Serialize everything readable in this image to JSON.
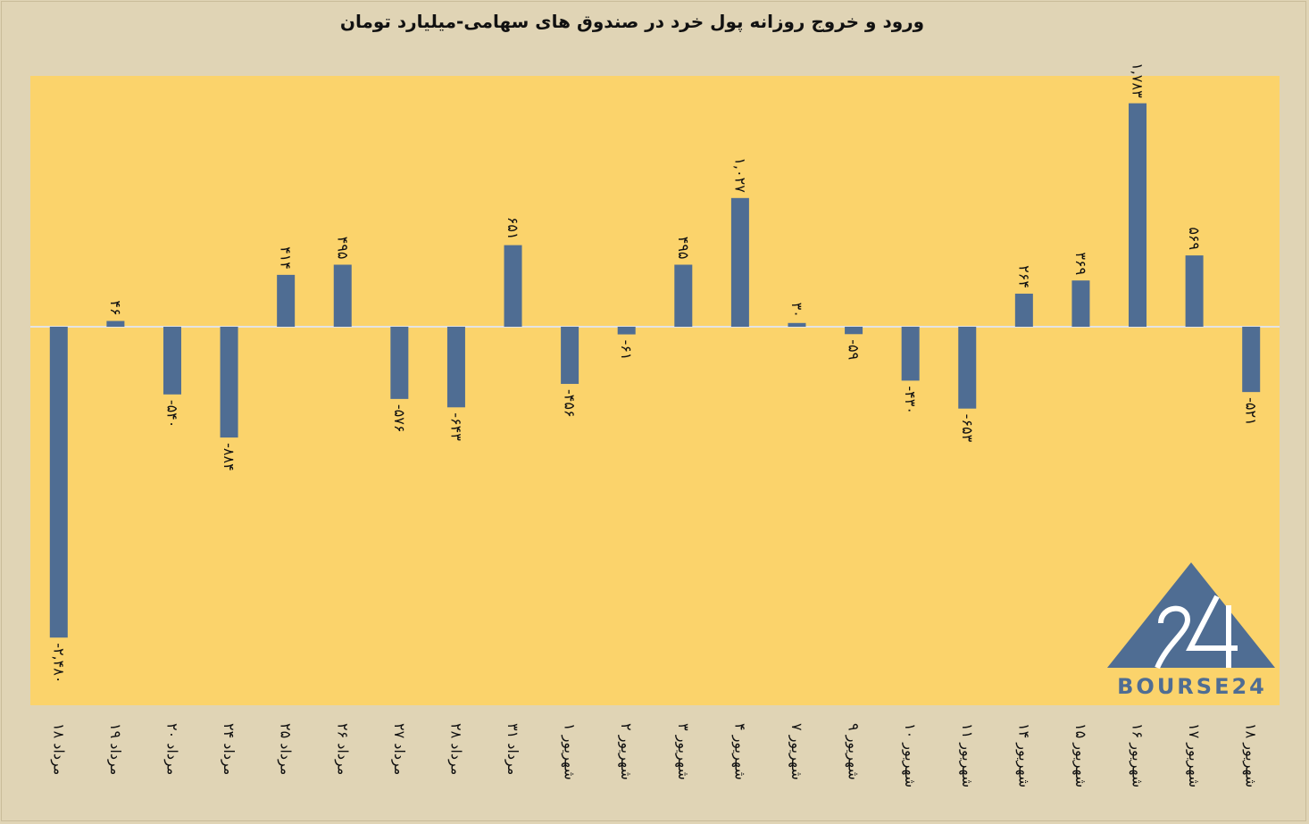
{
  "chart_data": {
    "type": "bar",
    "title": "ورود و خروج روزانه پول خرد در صندوق های سهامی-میلیارد تومان",
    "categories": [
      "۱۸ مرداد",
      "۱۹ مرداد",
      "۲۰ مرداد",
      "۲۴ مرداد",
      "۲۵ مرداد",
      "۲۶ مرداد",
      "۲۷ مرداد",
      "۲۸ مرداد",
      "۳۱ مرداد",
      "۱ شهریور",
      "۲ شهریور",
      "۳ شهریور",
      "۴ شهریور",
      "۷ شهریور",
      "۹ شهریور",
      "۱۰ شهریور",
      "۱۱ شهریور",
      "۱۴ شهریور",
      "۱۵ شهریور",
      "۱۶ شهریور",
      "۱۷ شهریور",
      "۱۸ شهریور"
    ],
    "values": [
      -2480,
      46,
      -540,
      -884,
      414,
      495,
      -576,
      -643,
      651,
      -456,
      -61,
      495,
      1027,
      30,
      -59,
      -430,
      -653,
      264,
      369,
      1783,
      569,
      -521
    ],
    "value_labels": [
      "-۲,۴۸۰",
      "۴۶",
      "-۵۴۰",
      "-۸۸۴",
      "۴۱۴",
      "۴۹۵",
      "-۵۷۶",
      "-۶۴۳",
      "۶۵۱",
      "-۴۵۶",
      "-۶۱",
      "۴۹۵",
      "۱,۰۲۷",
      "۳۰",
      "-۵۹",
      "-۴۳۰",
      "-۶۵۳",
      "۲۶۴",
      "۳۶۹",
      "۱,۷۸۳",
      "۵۶۹",
      "-۵۲۱"
    ],
    "ylim": [
      -2990,
      1985
    ],
    "grid": false,
    "legend": "none",
    "colors": {
      "bar": "#4f6d93",
      "plot_bg": "#fbd36b",
      "page_bg": "#e0d4b5",
      "zero_line": "#e4e4e4"
    }
  },
  "logo": {
    "text": "BOURSE24",
    "mark": "24"
  }
}
